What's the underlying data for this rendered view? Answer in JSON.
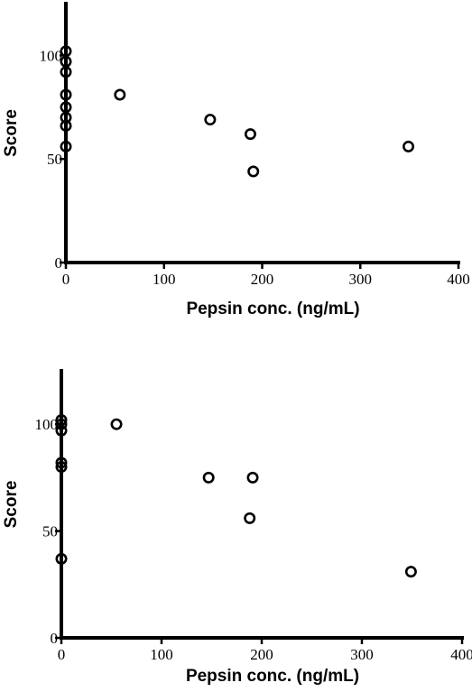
{
  "chart_data": [
    {
      "type": "scatter",
      "title": "",
      "xlabel": "Pepsin conc. (ng/mL)",
      "ylabel": "Score",
      "xlim": [
        0,
        400
      ],
      "ylim": [
        0,
        125
      ],
      "xticks": [
        0,
        100,
        200,
        300,
        400
      ],
      "yticks": [
        0,
        50,
        100
      ],
      "grid": false,
      "legend": "none",
      "marker": "open-circle",
      "color": "#000000",
      "points": [
        {
          "x": 0,
          "y": 102
        },
        {
          "x": 0,
          "y": 97
        },
        {
          "x": 0,
          "y": 92
        },
        {
          "x": 0,
          "y": 81
        },
        {
          "x": 0,
          "y": 75
        },
        {
          "x": 0,
          "y": 70
        },
        {
          "x": 0,
          "y": 66
        },
        {
          "x": 0,
          "y": 56
        },
        {
          "x": 55,
          "y": 81
        },
        {
          "x": 147,
          "y": 69
        },
        {
          "x": 188,
          "y": 62
        },
        {
          "x": 191,
          "y": 44
        },
        {
          "x": 349,
          "y": 56
        }
      ]
    },
    {
      "type": "scatter",
      "title": "",
      "xlabel": "Pepsin conc. (ng/mL)",
      "ylabel": "Score",
      "xlim": [
        0,
        400
      ],
      "ylim": [
        0,
        125
      ],
      "xticks": [
        0,
        100,
        200,
        300,
        400
      ],
      "yticks": [
        0,
        50,
        100
      ],
      "grid": false,
      "legend": "none",
      "marker": "open-circle",
      "color": "#000000",
      "points": [
        {
          "x": 0,
          "y": 102
        },
        {
          "x": 0,
          "y": 100
        },
        {
          "x": 0,
          "y": 97
        },
        {
          "x": 0,
          "y": 82
        },
        {
          "x": 0,
          "y": 80
        },
        {
          "x": 0,
          "y": 37
        },
        {
          "x": 55,
          "y": 100
        },
        {
          "x": 147,
          "y": 75
        },
        {
          "x": 191,
          "y": 75
        },
        {
          "x": 188,
          "y": 56
        },
        {
          "x": 349,
          "y": 31
        }
      ]
    }
  ]
}
